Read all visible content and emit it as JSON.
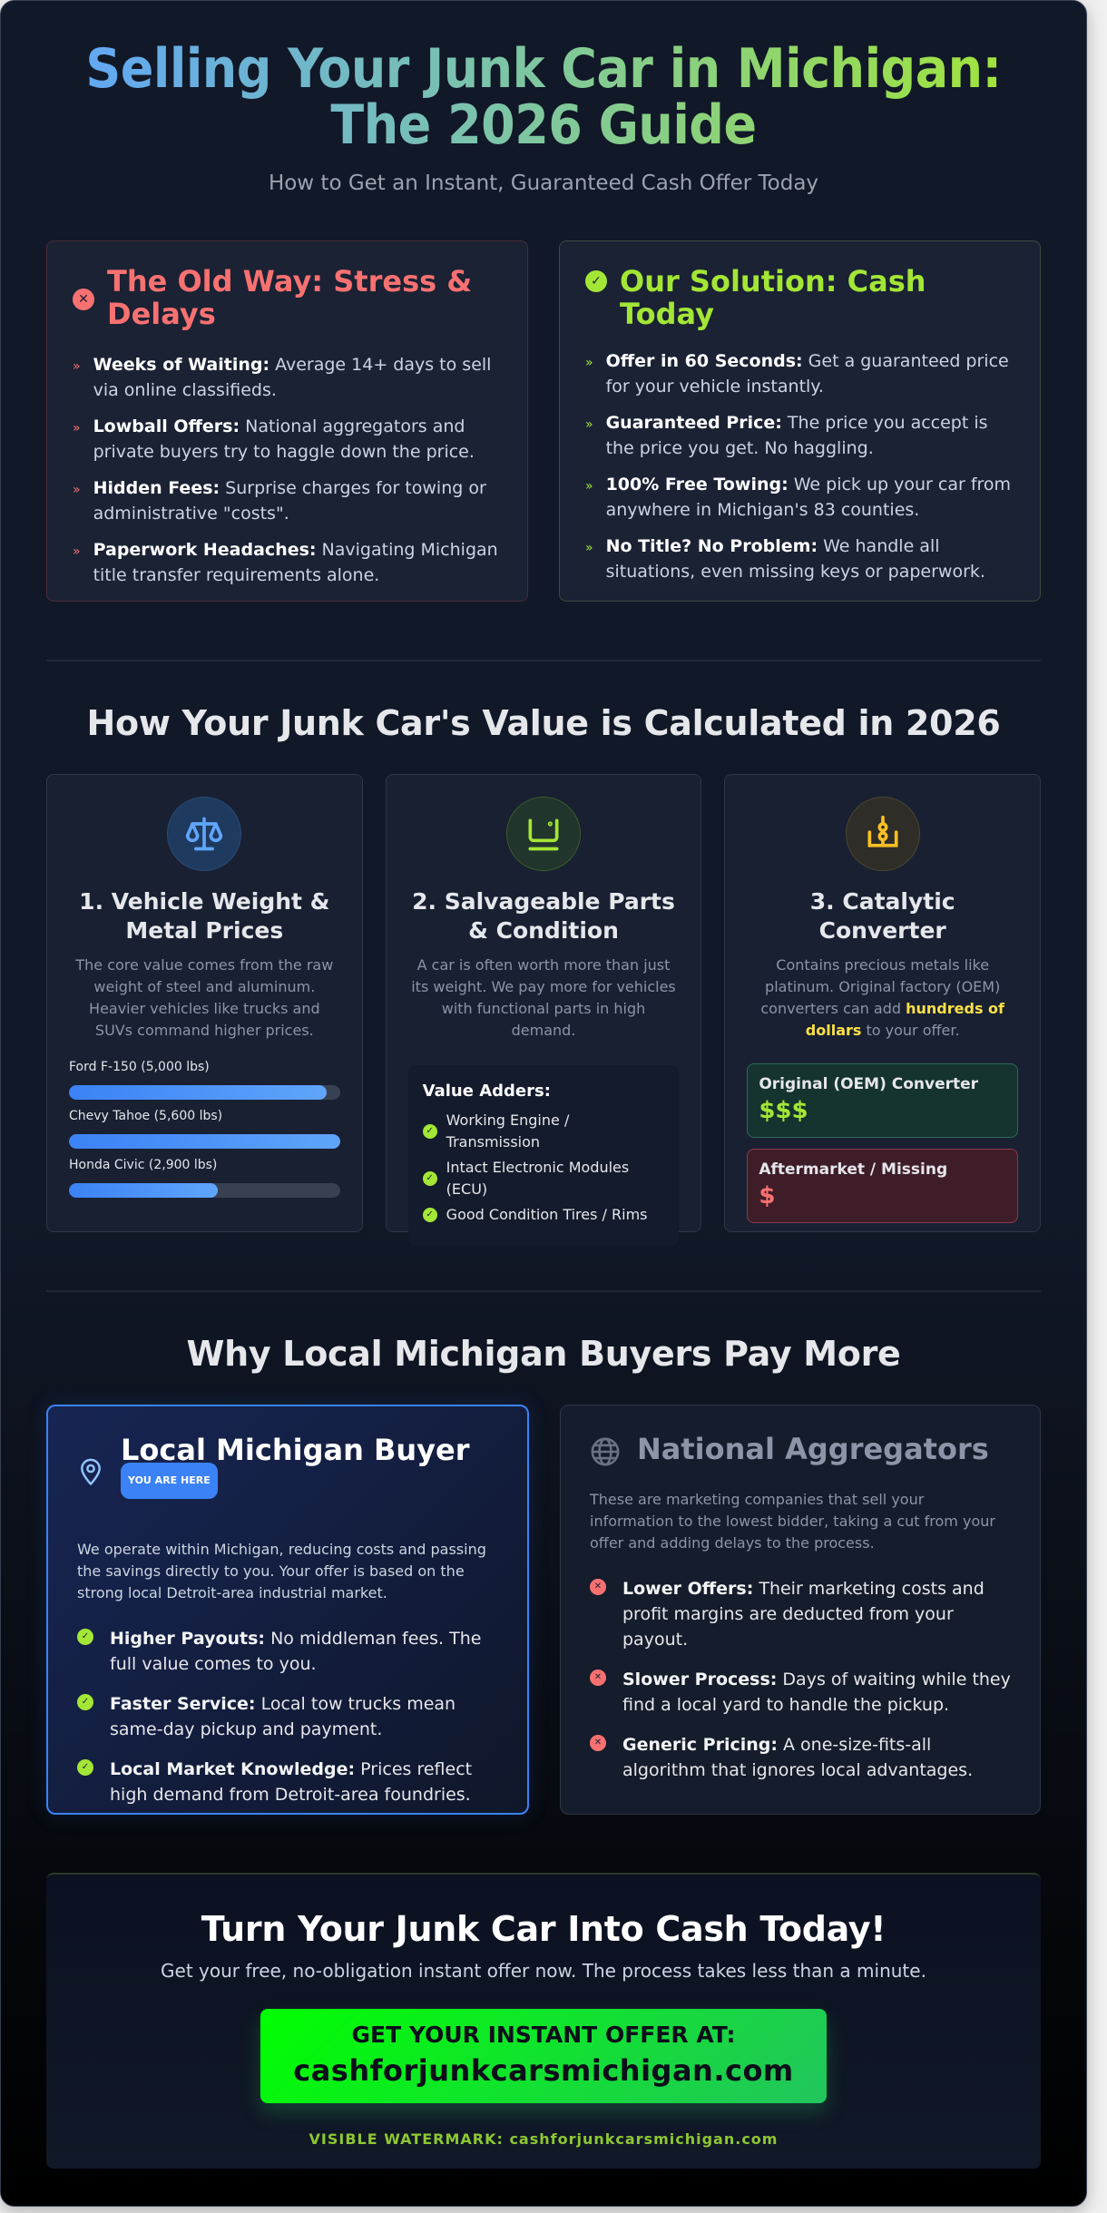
{
  "hero": {
    "title_line1": "Selling Your Junk Car in Michigan:",
    "title_line2": "The 2026 Guide",
    "subtitle": "How to Get an Instant, Guaranteed Cash Offer Today"
  },
  "compare": {
    "old_way": {
      "icon": "x-circle-icon",
      "title": "The Old Way: Stress & Delays",
      "items": [
        {
          "bold": "Weeks of Waiting:",
          "text": " Average 14+ days to sell via online classifieds."
        },
        {
          "bold": "Lowball Offers:",
          "text": " National aggregators and private buyers try to haggle down the price."
        },
        {
          "bold": "Hidden Fees:",
          "text": " Surprise charges for towing or administrative \"costs\"."
        },
        {
          "bold": "Paperwork Headaches:",
          "text": " Navigating Michigan title transfer requirements alone."
        }
      ]
    },
    "solution": {
      "icon": "check-circle-icon",
      "title": "Our Solution: Cash Today",
      "items": [
        {
          "bold": "Offer in 60 Seconds:",
          "text": " Get a guaranteed price for your vehicle instantly."
        },
        {
          "bold": "Guaranteed Price:",
          "text": " The price you accept is the price you get. No haggling."
        },
        {
          "bold": "100% Free Towing:",
          "text": " We pick up your car from anywhere in Michigan's 83 counties."
        },
        {
          "bold": "No Title? No Problem:",
          "text": " We handle all situations, even missing keys or paperwork."
        }
      ]
    },
    "bullet_glyph": "»"
  },
  "value_section": {
    "title": "How Your Junk Car's Value is Calculated in 2026",
    "weight": {
      "icon": "scale-icon",
      "title": "1. Vehicle Weight & Metal Prices",
      "desc": "The core value comes from the raw weight of steel and aluminum. Heavier vehicles like trucks and SUVs command higher prices.",
      "bars": [
        {
          "label": "Ford F-150 (5,000 lbs)",
          "percent": 95
        },
        {
          "label": "Chevy Tahoe (5,600 lbs)",
          "percent": 100
        },
        {
          "label": "Honda Civic (2,900 lbs)",
          "percent": 55
        }
      ]
    },
    "parts": {
      "icon": "engine-part-icon",
      "title": "2. Salvageable Parts & Condition",
      "desc": "A car is often worth more than just its weight. We pay more for vehicles with functional parts in high demand.",
      "adders_title": "Value Adders:",
      "adders": [
        "Working Engine / Transmission",
        "Intact Electronic Modules (ECU)",
        "Good Condition Tires / Rims"
      ]
    },
    "converter": {
      "icon": "catalytic-converter-icon",
      "title": "3. Catalytic Converter",
      "desc_before": "Contains precious metals like platinum. Original factory (OEM) converters can add ",
      "desc_highlight": "hundreds of dollars",
      "desc_after": " to your offer.",
      "oem": {
        "label": "Original (OEM) Converter",
        "value": "$$$"
      },
      "aftermarket": {
        "label": "Aftermarket / Missing",
        "value": "$"
      }
    }
  },
  "local_section": {
    "title": "Why Local Michigan Buyers Pay More",
    "local": {
      "icon": "map-pin-icon",
      "title": "Local Michigan Buyer",
      "badge": "YOU ARE HERE",
      "desc": "We operate within Michigan, reducing costs and passing the savings directly to you. Your offer is based on the strong local Detroit-area industrial market.",
      "items": [
        {
          "bold": "Higher Payouts:",
          "text": " No middleman fees. The full value comes to you."
        },
        {
          "bold": "Faster Service:",
          "text": " Local tow trucks mean same-day pickup and payment."
        },
        {
          "bold": "Local Market Knowledge:",
          "text": " Prices reflect high demand from Detroit-area foundries."
        }
      ]
    },
    "national": {
      "icon": "globe-icon",
      "title": "National Aggregators",
      "desc": "These are marketing companies that sell your information to the lowest bidder, taking a cut from your offer and adding delays to the process.",
      "items": [
        {
          "bold": "Lower Offers:",
          "text": " Their marketing costs and profit margins are deducted from your payout."
        },
        {
          "bold": "Slower Process:",
          "text": " Days of waiting while they find a local yard to handle the pickup."
        },
        {
          "bold": "Generic Pricing:",
          "text": " A one-size-fits-all algorithm that ignores local advantages."
        }
      ]
    }
  },
  "cta": {
    "title": "Turn Your Junk Car Into Cash Today!",
    "subtitle": "Get your free, no-obligation instant offer now. The process takes less than a minute.",
    "button_line1": "GET YOUR INSTANT OFFER AT:",
    "button_line2": "cashforjunkcarsmichigan.com",
    "watermark": "VISIBLE WATERMARK: cashforjunkcarsmichigan.com"
  },
  "colors": {
    "accent_green": "#a3e635",
    "accent_red": "#f87171",
    "accent_blue": "#3b82f6",
    "accent_yellow": "#fde047",
    "background": "#111827"
  }
}
